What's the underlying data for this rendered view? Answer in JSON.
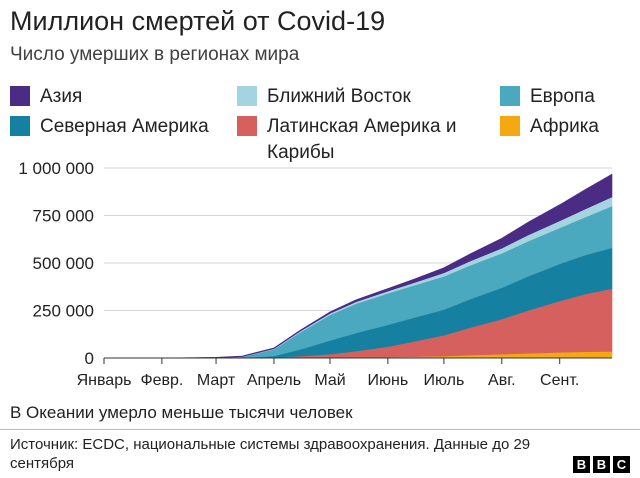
{
  "title": "Миллион смертей от Covid-19",
  "subtitle": "Число умерших в регионах мира",
  "legend": [
    {
      "label": "Азия",
      "color": "#4b2c84"
    },
    {
      "label": "Ближний Восток",
      "color": "#a4d4e0"
    },
    {
      "label": "Европа",
      "color": "#4ba9bf"
    },
    {
      "label": "Северная Америка",
      "color": "#1680a0"
    },
    {
      "label": "Латинская Америка и Карибы",
      "color": "#d6605e"
    },
    {
      "label": "Африка",
      "color": "#f5a812"
    }
  ],
  "chart_data": {
    "type": "area",
    "stacked": true,
    "x": [
      "2020-01-01",
      "2020-02-01",
      "2020-03-01",
      "2020-03-15",
      "2020-04-01",
      "2020-04-15",
      "2020-05-01",
      "2020-05-15",
      "2020-06-01",
      "2020-06-15",
      "2020-07-01",
      "2020-07-15",
      "2020-08-01",
      "2020-08-15",
      "2020-09-01",
      "2020-09-15",
      "2020-09-29"
    ],
    "x_ticks": [
      "2020-01-01",
      "2020-02-01",
      "2020-03-01",
      "2020-04-01",
      "2020-05-01",
      "2020-06-01",
      "2020-07-01",
      "2020-08-01",
      "2020-09-01"
    ],
    "x_tick_labels": [
      "Январь",
      "Февр.",
      "Март",
      "Апрель",
      "Май",
      "Июнь",
      "Июль",
      "Авг.",
      "Сент."
    ],
    "series": [
      {
        "name": "Африка",
        "color": "#f5a812",
        "values": [
          0,
          0,
          0,
          0,
          200,
          900,
          2000,
          3500,
          5000,
          7500,
          10000,
          15000,
          20000,
          25000,
          30000,
          33000,
          35000
        ]
      },
      {
        "name": "Латинская Америка и Карибы",
        "color": "#d6605e",
        "values": [
          0,
          0,
          0,
          200,
          2500,
          9000,
          18000,
          33000,
          55000,
          80000,
          110000,
          145000,
          185000,
          225000,
          270000,
          305000,
          330000
        ]
      },
      {
        "name": "Северная Америка",
        "color": "#1680a0",
        "values": [
          0,
          0,
          0,
          500,
          8000,
          35000,
          72000,
          95000,
          115000,
          125000,
          135000,
          150000,
          165000,
          180000,
          195000,
          205000,
          215000
        ]
      },
      {
        "name": "Европа",
        "color": "#4ba9bf",
        "values": [
          0,
          0,
          800,
          6000,
          35000,
          90000,
          135000,
          155000,
          165000,
          170000,
          175000,
          178000,
          181000,
          185000,
          190000,
          200000,
          220000
        ]
      },
      {
        "name": "Ближний Восток",
        "color": "#a4d4e0",
        "values": [
          0,
          0,
          0,
          700,
          3500,
          6000,
          8000,
          10000,
          12000,
          14000,
          18000,
          22000,
          27000,
          32000,
          37000,
          43000,
          48000
        ]
      },
      {
        "name": "Азия",
        "color": "#4b2c84",
        "values": [
          0,
          0,
          3000,
          3300,
          4000,
          5500,
          7500,
          10000,
          14000,
          19000,
          27000,
          38000,
          52000,
          68000,
          85000,
          103000,
          120000
        ]
      }
    ],
    "y_ticks": [
      0,
      250000,
      500000,
      750000,
      1000000
    ],
    "y_tick_labels": [
      "0",
      "250 000",
      "500 000",
      "750 000",
      "1 000 000"
    ],
    "ylim": [
      0,
      1000000
    ],
    "grid": true
  },
  "note": "В Океании умерло меньше тысячи человек",
  "source": "Источник: ECDC, национальные системы здравоохранения. Данные до 29 сентября",
  "logo": "BBC"
}
